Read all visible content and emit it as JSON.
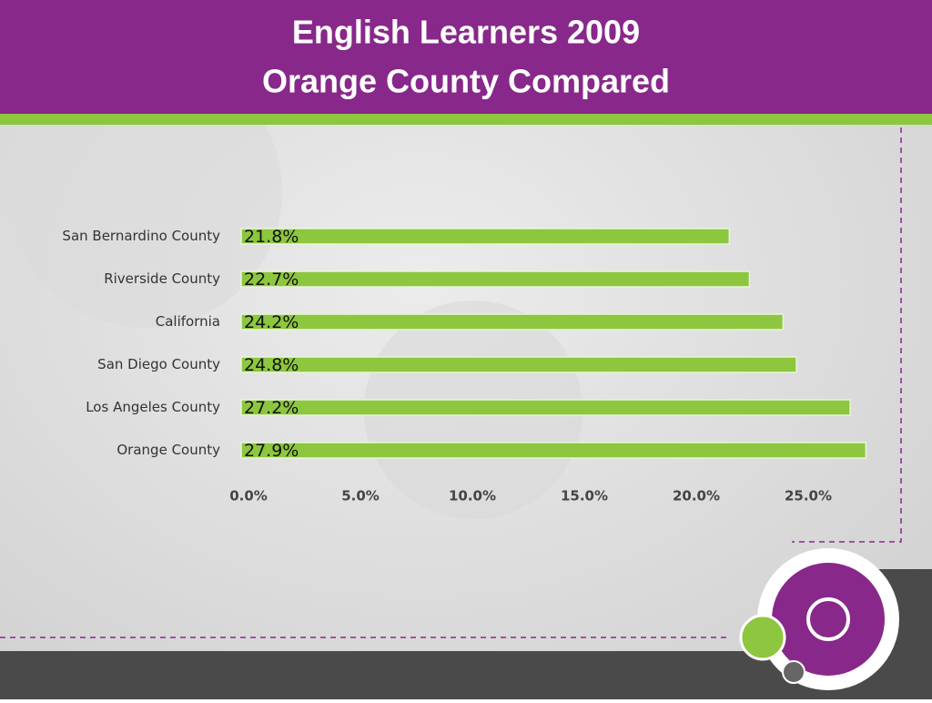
{
  "chart_data": {
    "type": "bar",
    "orientation": "horizontal",
    "title": [
      "English Learners 2009",
      "Orange County Compared"
    ],
    "categories": [
      "San Bernardino County",
      "Riverside County",
      "California",
      "San Diego County",
      "Los Angeles County",
      "Orange County"
    ],
    "values": [
      21.8,
      22.7,
      24.2,
      24.8,
      27.2,
      27.9
    ],
    "value_labels": [
      "21.8%",
      "22.7%",
      "24.2%",
      "24.8%",
      "27.2%",
      "27.9%"
    ],
    "color": "#8dc63f",
    "xlim": [
      0,
      30
    ],
    "xticks": [
      {
        "value": 0,
        "label": "0.0%"
      },
      {
        "value": 5,
        "label": "5.0%"
      },
      {
        "value": 10,
        "label": "10.0%"
      },
      {
        "value": 15,
        "label": "15.0%"
      },
      {
        "value": 20,
        "label": "20.0%"
      },
      {
        "value": 25,
        "label": "25.0%"
      }
    ],
    "grid": false
  }
}
